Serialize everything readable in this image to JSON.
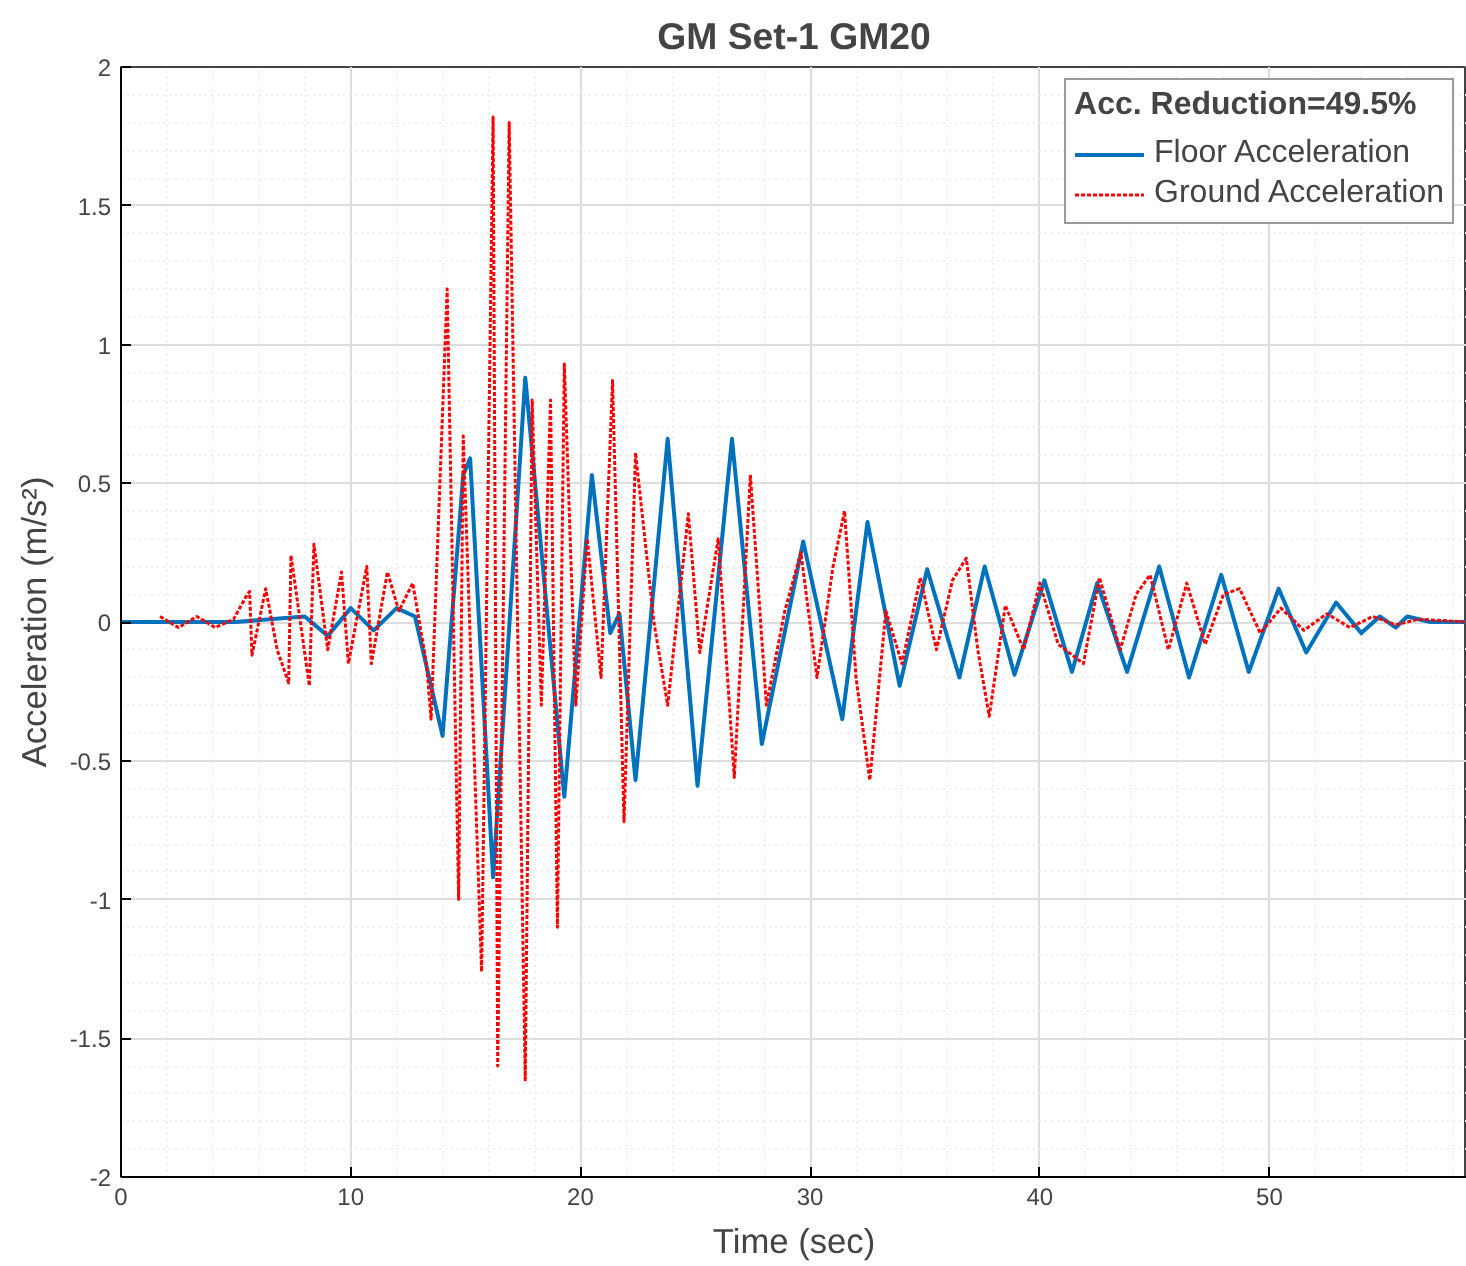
{
  "chart_data": {
    "type": "line",
    "title": "GM Set-1 GM20",
    "xlabel": "Time (sec)",
    "ylabel": "Acceleration (m/s²)",
    "legend_title": "Acc. Reduction=49.5%",
    "legend": "top right",
    "grid": true,
    "xlim": [
      0,
      58.6
    ],
    "ylim": [
      -2,
      2
    ],
    "xticks": [
      0,
      10,
      20,
      30,
      40,
      50
    ],
    "yticks": [
      -2,
      -1.5,
      -1,
      -0.5,
      0,
      0.5,
      1,
      1.5,
      2
    ],
    "series": [
      {
        "name": "Floor Acceleration",
        "color": "#0072bd",
        "line_style": "solid",
        "x": [
          0,
          1.7,
          5,
          8,
          9,
          10,
          11,
          12,
          12.8,
          14.0,
          14.9,
          15.2,
          16.2,
          17.6,
          19.3,
          20.5,
          21.3,
          21.7,
          22.4,
          23.8,
          25.1,
          26.6,
          27.9,
          29.7,
          31.4,
          32.5,
          33.9,
          35.1,
          36.5,
          37.6,
          38.9,
          40.2,
          41.4,
          42.5,
          43.8,
          45.2,
          46.5,
          47.9,
          49.1,
          50.4,
          51.6,
          52.9,
          54.0,
          54.8,
          55.5,
          56.0,
          57,
          58.6
        ],
        "values": [
          0,
          0,
          0,
          0.02,
          -0.05,
          0.05,
          -0.03,
          0.05,
          0.02,
          -0.41,
          0.53,
          0.59,
          -0.92,
          0.88,
          -0.63,
          0.53,
          -0.04,
          0.03,
          -0.57,
          0.66,
          -0.59,
          0.66,
          -0.44,
          0.29,
          -0.35,
          0.36,
          -0.23,
          0.19,
          -0.2,
          0.2,
          -0.19,
          0.15,
          -0.18,
          0.14,
          -0.18,
          0.2,
          -0.2,
          0.17,
          -0.18,
          0.12,
          -0.11,
          0.07,
          -0.04,
          0.02,
          -0.02,
          0.02,
          0,
          0
        ]
      },
      {
        "name": "Ground Acceleration",
        "color": "#ff0000",
        "line_style": "dotted",
        "x": [
          1.7,
          2.5,
          3.3,
          4.1,
          4.9,
          5.5,
          5.6,
          5.7,
          6.3,
          6.8,
          7.3,
          7.4,
          8.2,
          8.4,
          9.0,
          9.6,
          9.9,
          10.7,
          10.9,
          11.6,
          12.1,
          12.7,
          13.3,
          13.5,
          14.2,
          14.7,
          14.9,
          15.7,
          16.2,
          16.4,
          16.9,
          17.6,
          17.9,
          18.3,
          18.7,
          19.0,
          19.3,
          19.8,
          20.3,
          20.9,
          21.4,
          21.9,
          22.4,
          23.2,
          23.8,
          24.7,
          25.2,
          26.0,
          26.7,
          27.4,
          28.1,
          28.9,
          29.6,
          30.3,
          31.0,
          31.5,
          32.0,
          32.6,
          33.3,
          34.0,
          34.8,
          35.5,
          36.2,
          36.8,
          37.3,
          37.8,
          38.5,
          39.3,
          40.0,
          40.8,
          41.9,
          42.6,
          43.5,
          44.2,
          44.8,
          45.6,
          46.4,
          47.2,
          48.0,
          48.7,
          49.6,
          50.5,
          51.5,
          52.5,
          53.5,
          54.5,
          55.5,
          56.5,
          58.6
        ],
        "values": [
          0.02,
          -0.02,
          0.02,
          -0.02,
          0.01,
          0.1,
          0.11,
          -0.12,
          0.12,
          -0.1,
          -0.22,
          0.24,
          -0.23,
          0.28,
          -0.1,
          0.18,
          -0.15,
          0.2,
          -0.15,
          0.18,
          0.04,
          0.14,
          -0.15,
          -0.35,
          1.2,
          -1.0,
          0.67,
          -1.26,
          1.82,
          -1.6,
          1.8,
          -1.65,
          0.8,
          -0.3,
          0.8,
          -1.1,
          0.93,
          -0.3,
          0.3,
          -0.2,
          0.87,
          -0.72,
          0.61,
          0.0,
          -0.3,
          0.39,
          -0.11,
          0.3,
          -0.56,
          0.53,
          -0.3,
          0.04,
          0.25,
          -0.2,
          0.2,
          0.4,
          -0.2,
          -0.57,
          0.04,
          -0.15,
          0.16,
          -0.1,
          0.15,
          0.23,
          -0.1,
          -0.34,
          0.06,
          -0.1,
          0.14,
          -0.08,
          -0.15,
          0.16,
          -0.1,
          0.1,
          0.17,
          -0.1,
          0.14,
          -0.08,
          0.1,
          0.12,
          -0.04,
          0.05,
          -0.03,
          0.03,
          -0.02,
          0.02,
          -0.01,
          0.01,
          0
        ]
      }
    ]
  }
}
